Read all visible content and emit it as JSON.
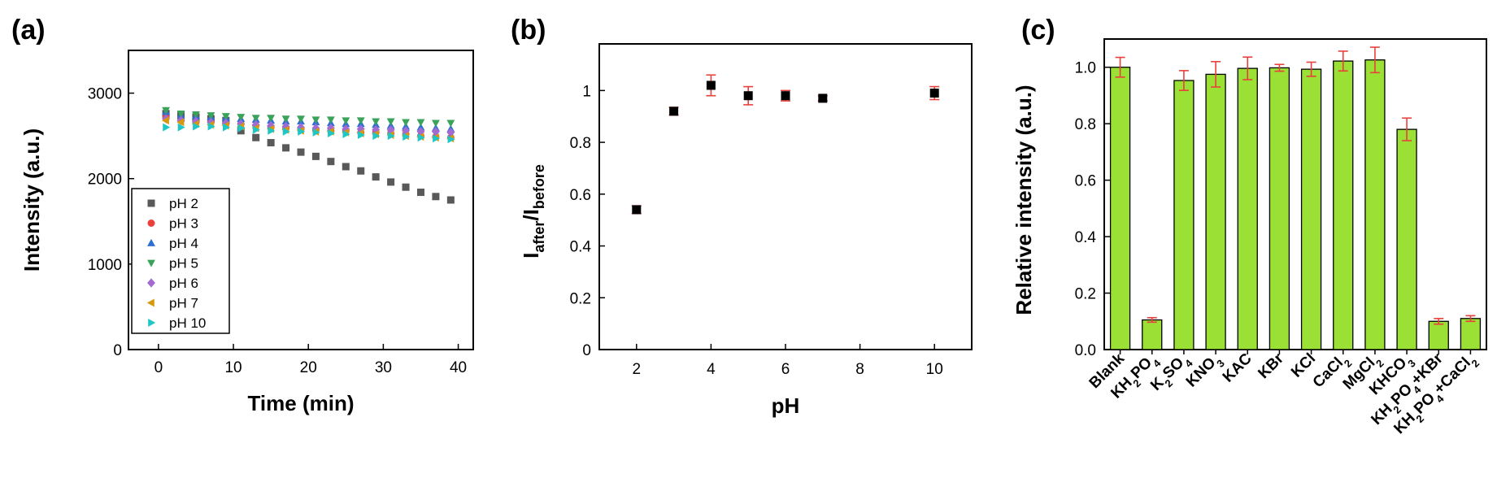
{
  "chart_data": [
    {
      "panel": "(a)",
      "type": "scatter",
      "title": "",
      "xlabel": "Time (min)",
      "ylabel": "Intensity (a.u.)",
      "xlim": [
        -4,
        42
      ],
      "ylim": [
        0,
        3500
      ],
      "xticks": [
        0,
        10,
        20,
        30,
        40
      ],
      "yticks": [
        0,
        1000,
        2000,
        3000
      ],
      "grid": false,
      "legend_position": "lower-left",
      "x": [
        1,
        3,
        5,
        7,
        9,
        11,
        13,
        15,
        17,
        19,
        21,
        23,
        25,
        27,
        29,
        31,
        33,
        35,
        37,
        39
      ],
      "series": [
        {
          "name": "pH 2",
          "marker": "square",
          "color": "#595959",
          "values": [
            2760,
            2740,
            2720,
            2700,
            2680,
            2560,
            2480,
            2420,
            2360,
            2310,
            2260,
            2200,
            2140,
            2090,
            2020,
            1960,
            1900,
            1840,
            1790,
            1750
          ]
        },
        {
          "name": "pH 3",
          "marker": "circle",
          "color": "#e8413c",
          "values": [
            2720,
            2680,
            2660,
            2660,
            2640,
            2640,
            2620,
            2600,
            2590,
            2580,
            2570,
            2560,
            2560,
            2540,
            2540,
            2530,
            2520,
            2500,
            2490,
            2480
          ]
        },
        {
          "name": "pH 4",
          "marker": "triangle-up",
          "color": "#2e6fd4",
          "values": [
            2780,
            2740,
            2730,
            2720,
            2710,
            2700,
            2690,
            2680,
            2670,
            2670,
            2660,
            2650,
            2640,
            2640,
            2630,
            2620,
            2610,
            2600,
            2590,
            2580
          ]
        },
        {
          "name": "pH 5",
          "marker": "triangle-down",
          "color": "#3aa35a",
          "values": [
            2800,
            2760,
            2750,
            2740,
            2730,
            2720,
            2710,
            2710,
            2700,
            2700,
            2690,
            2690,
            2680,
            2680,
            2670,
            2670,
            2660,
            2660,
            2650,
            2650
          ]
        },
        {
          "name": "pH 6",
          "marker": "diamond",
          "color": "#a26bd1",
          "values": [
            2700,
            2680,
            2670,
            2660,
            2650,
            2640,
            2630,
            2620,
            2610,
            2600,
            2590,
            2590,
            2580,
            2580,
            2570,
            2570,
            2560,
            2550,
            2550,
            2540
          ]
        },
        {
          "name": "pH 7",
          "marker": "triangle-left",
          "color": "#d49a0b",
          "values": [
            2680,
            2660,
            2640,
            2630,
            2620,
            2610,
            2590,
            2580,
            2570,
            2560,
            2550,
            2550,
            2540,
            2530,
            2520,
            2510,
            2500,
            2490,
            2480,
            2470
          ]
        },
        {
          "name": "pH 10",
          "marker": "triangle-right",
          "color": "#1fc6c6",
          "values": [
            2600,
            2600,
            2610,
            2610,
            2600,
            2590,
            2570,
            2560,
            2550,
            2550,
            2540,
            2530,
            2520,
            2510,
            2500,
            2500,
            2490,
            2480,
            2470,
            2460
          ]
        }
      ]
    },
    {
      "panel": "(b)",
      "type": "scatter",
      "title": "",
      "xlabel": "pH",
      "ylabel_main": "I",
      "ylabel_sub1": "after",
      "ylabel_sep": "/I",
      "ylabel_sub2": "before",
      "xlim": [
        1,
        11
      ],
      "ylim": [
        0,
        1.18
      ],
      "xticks": [
        2,
        4,
        6,
        8,
        10
      ],
      "yticks": [
        0,
        0.2,
        0.4,
        0.6,
        0.8,
        1
      ],
      "grid": false,
      "marker_color": "#000000",
      "error_color": "#e8413c",
      "x": [
        2,
        3,
        4,
        5,
        6,
        7,
        10
      ],
      "values": [
        0.54,
        0.92,
        1.02,
        0.98,
        0.98,
        0.97,
        0.99
      ],
      "errors": [
        0.015,
        0.015,
        0.04,
        0.035,
        0.02,
        0.01,
        0.025
      ]
    },
    {
      "panel": "(c)",
      "type": "bar",
      "title": "",
      "xlabel": "",
      "ylabel": "Relative intensity (a.u.)",
      "ylim": [
        0,
        1.1
      ],
      "yticks": [
        0.0,
        0.2,
        0.4,
        0.6,
        0.8,
        1.0
      ],
      "grid": false,
      "bar_color": "#9be034",
      "error_color": "#e8413c",
      "categories": [
        {
          "parts": [
            [
              "Blank",
              ""
            ]
          ]
        },
        {
          "parts": [
            [
              "KH",
              ""
            ],
            [
              "2",
              "sub"
            ],
            [
              "PO",
              ""
            ],
            [
              "4",
              "sub"
            ]
          ]
        },
        {
          "parts": [
            [
              "K",
              ""
            ],
            [
              "2",
              "sub"
            ],
            [
              "SO",
              ""
            ],
            [
              "4",
              "sub"
            ]
          ]
        },
        {
          "parts": [
            [
              "KNO",
              ""
            ],
            [
              "3",
              "sub"
            ]
          ]
        },
        {
          "parts": [
            [
              "KAC",
              ""
            ]
          ]
        },
        {
          "parts": [
            [
              "KBr",
              ""
            ]
          ]
        },
        {
          "parts": [
            [
              "KCl",
              ""
            ]
          ]
        },
        {
          "parts": [
            [
              "CaCl",
              ""
            ],
            [
              "2",
              "sub"
            ]
          ]
        },
        {
          "parts": [
            [
              "MgCl",
              ""
            ],
            [
              "2",
              "sub"
            ]
          ]
        },
        {
          "parts": [
            [
              "KHCO",
              ""
            ],
            [
              "3",
              "sub"
            ]
          ]
        },
        {
          "parts": [
            [
              "KH",
              ""
            ],
            [
              "2",
              "sub"
            ],
            [
              "PO",
              ""
            ],
            [
              "4",
              "sub"
            ],
            [
              "+KBr",
              ""
            ]
          ]
        },
        {
          "parts": [
            [
              "KH",
              ""
            ],
            [
              "2",
              "sub"
            ],
            [
              "PO",
              ""
            ],
            [
              "4",
              "sub"
            ],
            [
              "+CaCl",
              ""
            ],
            [
              "2",
              "sub"
            ]
          ]
        }
      ],
      "values": [
        1.0,
        0.105,
        0.953,
        0.975,
        0.996,
        0.998,
        0.993,
        1.022,
        1.026,
        0.78,
        0.1,
        0.11
      ],
      "errors": [
        0.035,
        0.008,
        0.035,
        0.045,
        0.04,
        0.012,
        0.025,
        0.035,
        0.045,
        0.04,
        0.01,
        0.01
      ]
    }
  ]
}
